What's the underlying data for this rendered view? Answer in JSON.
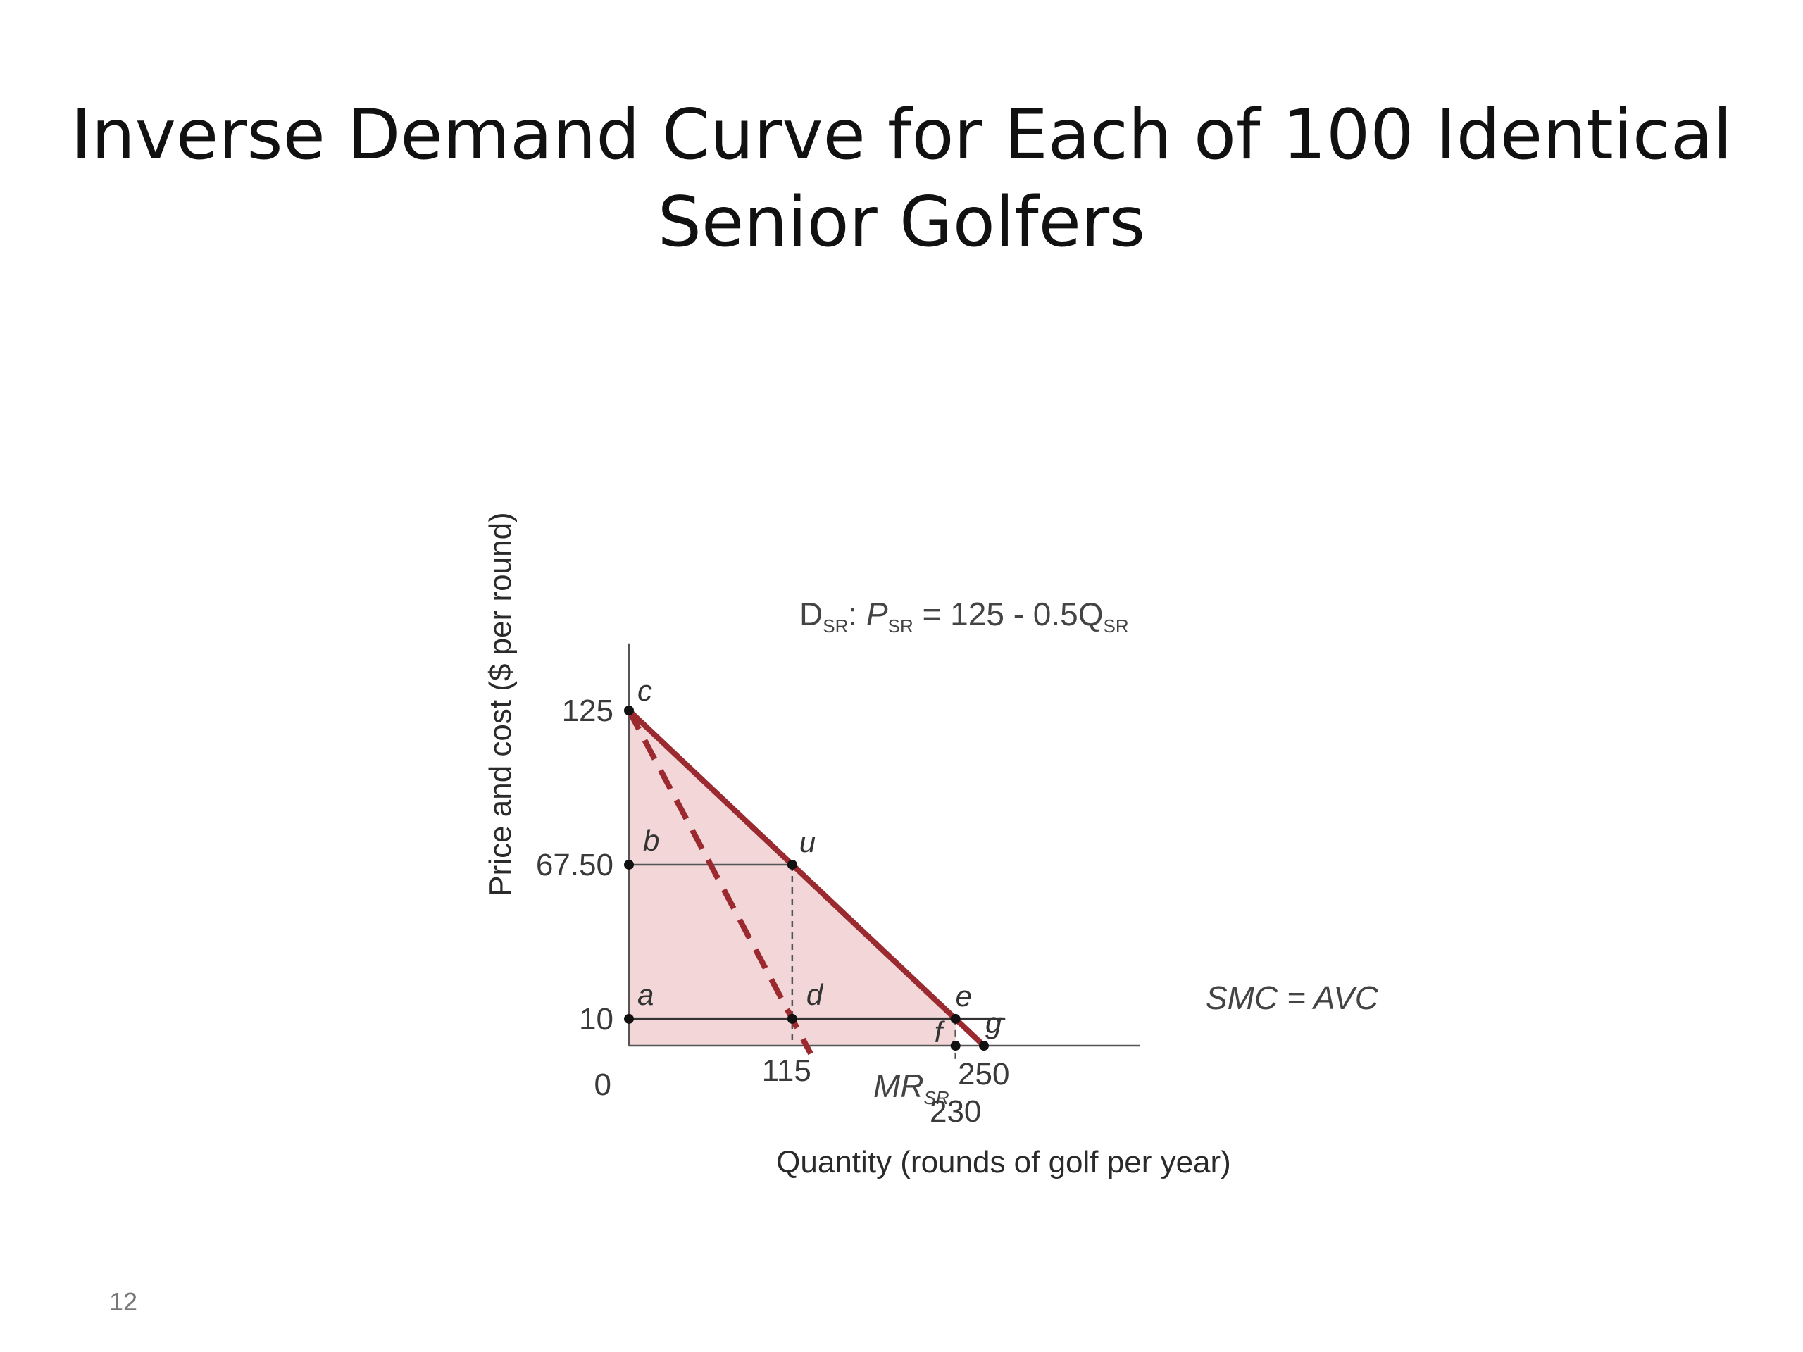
{
  "slide": {
    "title_line1": "Inverse Demand Curve for Each of 100 Identical",
    "title_line2": "Senior Golfers",
    "page_number": "12"
  },
  "chart_data": {
    "type": "line",
    "xlabel": "Quantity (rounds of golf per year)",
    "ylabel": "Price and cost ($ per round)",
    "xlim": [
      0,
      360
    ],
    "ylim": [
      0,
      150
    ],
    "origin_label": "0",
    "x_ticks": [
      {
        "value": 115,
        "label": "115"
      },
      {
        "value": 230,
        "label": "230"
      },
      {
        "value": 250,
        "label": "250"
      }
    ],
    "y_ticks": [
      {
        "value": 125,
        "label": "125"
      },
      {
        "value": 67.5,
        "label": "67.50"
      },
      {
        "value": 10,
        "label": "10"
      }
    ],
    "series": [
      {
        "key": "demand",
        "label_main": "D",
        "label_sub": "SR",
        "label_rest": ": ",
        "label_p": "P",
        "label_psub": "SR",
        "label_eq": " = 125 - 0.5Q",
        "label_qsub": "SR",
        "points": [
          [
            0,
            125
          ],
          [
            250,
            0
          ]
        ],
        "color": "#9b2a30",
        "style": "solid"
      },
      {
        "key": "mr",
        "label_main": "MR",
        "label_sub": "SR",
        "points": [
          [
            0,
            125
          ],
          [
            128,
            -3
          ]
        ],
        "color": "#9b2a30",
        "style": "dashed"
      },
      {
        "key": "smc",
        "label_main": "SMC = AVC",
        "points": [
          [
            0,
            10
          ],
          [
            265,
            10
          ]
        ],
        "color": "#333333",
        "style": "solid"
      }
    ],
    "shaded_region": {
      "points": [
        [
          0,
          0
        ],
        [
          0,
          125
        ],
        [
          230,
          10
        ],
        [
          230,
          0
        ]
      ],
      "color": "#f2d6d8"
    },
    "guides": [
      {
        "from": [
          0,
          67.5
        ],
        "to": [
          115,
          67.5
        ],
        "style": "solid"
      },
      {
        "from": [
          115,
          67.5
        ],
        "to": [
          115,
          0
        ],
        "style": "dashed"
      },
      {
        "from": [
          230,
          10
        ],
        "to": [
          230,
          -6
        ],
        "style": "dashed"
      }
    ],
    "points": [
      {
        "name": "c",
        "x": 0,
        "y": 125
      },
      {
        "name": "b",
        "x": 0,
        "y": 67.5
      },
      {
        "name": "u",
        "x": 115,
        "y": 67.5
      },
      {
        "name": "a",
        "x": 0,
        "y": 10
      },
      {
        "name": "d",
        "x": 115,
        "y": 10
      },
      {
        "name": "e",
        "x": 230,
        "y": 10
      },
      {
        "name": "f",
        "x": 230,
        "y": 0
      },
      {
        "name": "g",
        "x": 250,
        "y": 0
      }
    ],
    "shaded_color": "#f2d6d8",
    "curve_color": "#9b2a30"
  }
}
